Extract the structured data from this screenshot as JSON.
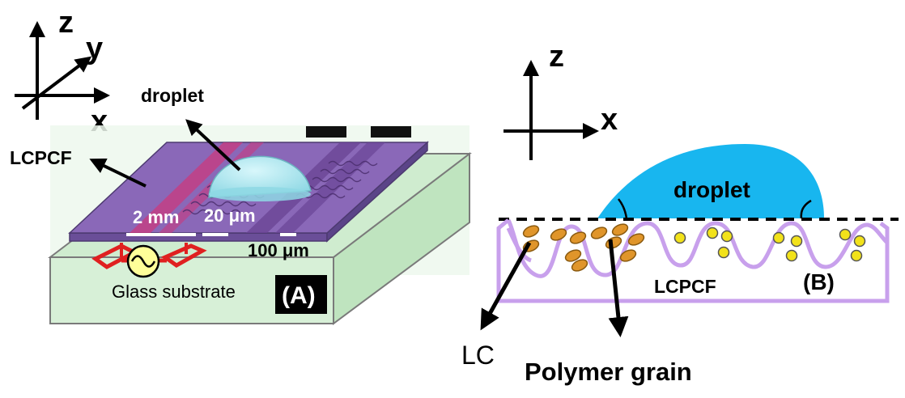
{
  "panel_a": {
    "axes": {
      "z": "z",
      "y": "y",
      "x": "x"
    },
    "droplet_label": "droplet",
    "lcpcf_label": "LCPCF",
    "dim_2mm": "2 mm",
    "dim_20um": "20 μm",
    "dim_100um": "100 μm",
    "substrate_label": "Glass substrate",
    "panel_tag": "(A)",
    "colors": {
      "substrate_top": "#cfeccf",
      "substrate_side": "#d9f2d9",
      "film": "#8a68b8",
      "electrode_red": "#e02020",
      "droplet": "#a8e6ee",
      "source_yellow": "#ffff99"
    }
  },
  "panel_b": {
    "axes": {
      "z": "z",
      "x": "x"
    },
    "droplet_label": "droplet",
    "lcpcf_label": "LCPCF",
    "panel_tag": "(B)",
    "lc_label": "LC",
    "polymer_grain_label": "Polymer grain",
    "colors": {
      "droplet": "#18b6ef",
      "film_outline": "#c8a0ec",
      "lc_molecule": "#e0952a",
      "grain": "#f2e21a"
    }
  }
}
